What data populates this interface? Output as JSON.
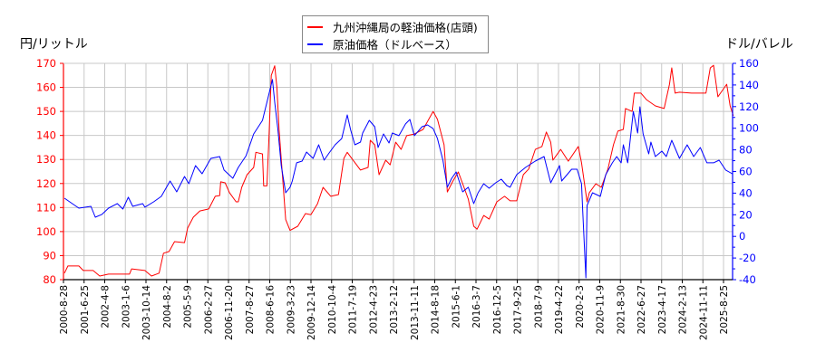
{
  "chart_data": {
    "type": "line",
    "left_axis_title": "円/リットル",
    "right_axis_title": "ドル/バレル",
    "left_ylim": [
      80,
      170
    ],
    "left_yticks": [
      80,
      90,
      100,
      110,
      120,
      130,
      140,
      150,
      160,
      170
    ],
    "right_ylim": [
      -40,
      160
    ],
    "right_yticks": [
      -40,
      -20,
      0,
      20,
      40,
      60,
      80,
      100,
      120,
      140,
      160
    ],
    "grid": true,
    "legend_position": "top-center",
    "xtick_labels": [
      "2000-8-28",
      "2001-6-25",
      "2002-4-8",
      "2003-1-6",
      "2003-10-14",
      "2004-8-2",
      "2005-5-9",
      "2006-2-27",
      "2006-11-20",
      "2007-8-27",
      "2008-6-16",
      "2009-3-23",
      "2009-12-14",
      "2010-10-4",
      "2011-7-19",
      "2012-4-23",
      "2013-2-12",
      "2013-11-11",
      "2014-8-18",
      "2015-6-1",
      "2016-3-7",
      "2016-12-5",
      "2017-9-25",
      "2018-7-9",
      "2019-4-22",
      "2020-2-3",
      "2020-11-9",
      "2021-8-30",
      "2022-6-27",
      "2023-4-17",
      "2024-2-13",
      "2024-11-11",
      "2025-8-25"
    ],
    "series": [
      {
        "name": "九州沖縄局の軽油価格(店頭)",
        "axis": "left",
        "color": "#ff0000",
        "points": [
          [
            "2000-09-15",
            82.7
          ],
          [
            "2000-11-01",
            85.7
          ],
          [
            "2001-04-01",
            85.7
          ],
          [
            "2001-06-01",
            83.8
          ],
          [
            "2001-10-15",
            83.8
          ],
          [
            "2002-01-15",
            81.5
          ],
          [
            "2002-05-15",
            82.3
          ],
          [
            "2003-03-01",
            82.3
          ],
          [
            "2003-04-01",
            84.5
          ],
          [
            "2003-10-01",
            83.8
          ],
          [
            "2004-01-01",
            81.5
          ],
          [
            "2004-04-15",
            82.7
          ],
          [
            "2004-06-15",
            91.0
          ],
          [
            "2004-09-01",
            91.7
          ],
          [
            "2004-11-15",
            95.8
          ],
          [
            "2005-04-01",
            95.4
          ],
          [
            "2005-05-15",
            101.5
          ],
          [
            "2005-08-01",
            106.0
          ],
          [
            "2005-11-01",
            108.6
          ],
          [
            "2006-03-01",
            109.4
          ],
          [
            "2006-06-01",
            114.7
          ],
          [
            "2006-08-01",
            115.0
          ],
          [
            "2006-08-15",
            120.7
          ],
          [
            "2006-10-15",
            120.3
          ],
          [
            "2006-12-15",
            116.2
          ],
          [
            "2007-03-15",
            112.4
          ],
          [
            "2007-04-15",
            112.4
          ],
          [
            "2007-06-01",
            118.4
          ],
          [
            "2007-08-15",
            123.7
          ],
          [
            "2007-11-15",
            126.7
          ],
          [
            "2007-12-15",
            133.0
          ],
          [
            "2008-03-15",
            132.3
          ],
          [
            "2008-04-01",
            119.0
          ],
          [
            "2008-05-15",
            119.0
          ],
          [
            "2008-06-15",
            140.6
          ],
          [
            "2008-07-15",
            165.0
          ],
          [
            "2008-09-01",
            169.0
          ],
          [
            "2008-10-01",
            160.0
          ],
          [
            "2008-11-01",
            142.5
          ],
          [
            "2009-02-01",
            105.0
          ],
          [
            "2009-04-01",
            100.5
          ],
          [
            "2009-07-15",
            102.2
          ],
          [
            "2009-11-01",
            107.5
          ],
          [
            "2010-01-15",
            107.0
          ],
          [
            "2010-04-15",
            111.6
          ],
          [
            "2010-07-01",
            118.4
          ],
          [
            "2010-10-15",
            114.7
          ],
          [
            "2011-02-01",
            115.4
          ],
          [
            "2011-04-15",
            130.5
          ],
          [
            "2011-06-01",
            133.0
          ],
          [
            "2011-08-01",
            130.5
          ],
          [
            "2011-12-01",
            125.6
          ],
          [
            "2012-03-15",
            126.7
          ],
          [
            "2012-04-15",
            138.0
          ],
          [
            "2012-06-15",
            136.1
          ],
          [
            "2012-08-15",
            123.7
          ],
          [
            "2012-11-15",
            129.7
          ],
          [
            "2013-01-15",
            127.8
          ],
          [
            "2013-04-01",
            137.2
          ],
          [
            "2013-06-15",
            134.2
          ],
          [
            "2013-09-01",
            139.9
          ],
          [
            "2013-12-15",
            140.6
          ],
          [
            "2014-04-15",
            142.5
          ],
          [
            "2014-09-01",
            150.0
          ],
          [
            "2014-11-01",
            146.7
          ],
          [
            "2015-02-01",
            136.1
          ],
          [
            "2015-03-15",
            116.5
          ],
          [
            "2015-06-01",
            121.0
          ],
          [
            "2015-08-15",
            124.8
          ],
          [
            "2015-10-15",
            119.9
          ],
          [
            "2016-01-01",
            113.5
          ],
          [
            "2016-03-15",
            102.2
          ],
          [
            "2016-05-01",
            101.0
          ],
          [
            "2016-08-01",
            106.7
          ],
          [
            "2016-10-15",
            105.2
          ],
          [
            "2017-02-01",
            112.4
          ],
          [
            "2017-05-15",
            114.7
          ],
          [
            "2017-08-01",
            112.8
          ],
          [
            "2017-11-01",
            112.8
          ],
          [
            "2018-02-01",
            123.7
          ],
          [
            "2018-04-15",
            126.0
          ],
          [
            "2018-07-15",
            134.2
          ],
          [
            "2018-10-15",
            135.4
          ],
          [
            "2018-12-15",
            141.4
          ],
          [
            "2019-02-15",
            137.2
          ],
          [
            "2019-03-15",
            129.7
          ],
          [
            "2019-07-01",
            134.2
          ],
          [
            "2019-10-15",
            129.3
          ],
          [
            "2020-03-01",
            135.4
          ],
          [
            "2020-04-15",
            128.6
          ],
          [
            "2020-07-01",
            112.4
          ],
          [
            "2020-08-01",
            116.2
          ],
          [
            "2020-11-01",
            119.9
          ],
          [
            "2021-01-15",
            118.4
          ],
          [
            "2021-04-15",
            126.0
          ],
          [
            "2021-07-01",
            136.1
          ],
          [
            "2021-09-01",
            141.8
          ],
          [
            "2021-11-15",
            142.5
          ],
          [
            "2021-12-15",
            151.2
          ],
          [
            "2022-03-15",
            150.0
          ],
          [
            "2022-04-15",
            157.6
          ],
          [
            "2022-07-15",
            157.6
          ],
          [
            "2022-10-01",
            154.9
          ],
          [
            "2023-02-01",
            152.3
          ],
          [
            "2023-06-01",
            151.2
          ],
          [
            "2023-08-15",
            161.3
          ],
          [
            "2023-09-15",
            168.1
          ],
          [
            "2023-11-01",
            157.6
          ],
          [
            "2024-01-01",
            158.0
          ],
          [
            "2024-06-15",
            157.6
          ],
          [
            "2025-01-01",
            157.6
          ],
          [
            "2025-03-01",
            168.1
          ],
          [
            "2025-04-15",
            169.2
          ],
          [
            "2025-06-15",
            156.1
          ],
          [
            "2025-08-15",
            158.7
          ],
          [
            "2025-10-15",
            161.3
          ],
          [
            "2025-12-01",
            152.3
          ],
          [
            "2026-01-15",
            148.2
          ]
        ]
      },
      {
        "name": "原油価格（ドルベース）",
        "axis": "right",
        "color": "#0000ff",
        "points": [
          [
            "2000-09-15",
            35.3
          ],
          [
            "2001-01-01",
            30.3
          ],
          [
            "2001-04-01",
            26.1
          ],
          [
            "2001-09-15",
            27.8
          ],
          [
            "2001-11-15",
            17.7
          ],
          [
            "2002-02-15",
            20.3
          ],
          [
            "2002-05-15",
            26.1
          ],
          [
            "2002-09-15",
            30.3
          ],
          [
            "2002-12-01",
            25.3
          ],
          [
            "2003-02-15",
            36.2
          ],
          [
            "2003-04-15",
            27.8
          ],
          [
            "2003-09-01",
            30.3
          ],
          [
            "2003-10-01",
            27.0
          ],
          [
            "2004-02-01",
            32.0
          ],
          [
            "2004-05-15",
            37.0
          ],
          [
            "2004-09-15",
            51.2
          ],
          [
            "2004-12-15",
            41.2
          ],
          [
            "2005-04-01",
            55.4
          ],
          [
            "2005-06-01",
            48.7
          ],
          [
            "2005-09-01",
            65.4
          ],
          [
            "2005-12-01",
            57.9
          ],
          [
            "2006-04-01",
            72.1
          ],
          [
            "2006-08-01",
            73.8
          ],
          [
            "2006-10-01",
            61.3
          ],
          [
            "2007-02-01",
            53.7
          ],
          [
            "2007-04-15",
            63.8
          ],
          [
            "2007-08-01",
            74.6
          ],
          [
            "2007-11-15",
            94.7
          ],
          [
            "2008-03-15",
            107.3
          ],
          [
            "2008-05-15",
            124.0
          ],
          [
            "2008-08-01",
            145.0
          ],
          [
            "2008-09-01",
            124.0
          ],
          [
            "2008-10-15",
            98.9
          ],
          [
            "2008-12-01",
            65.4
          ],
          [
            "2009-02-01",
            40.3
          ],
          [
            "2009-04-01",
            45.4
          ],
          [
            "2009-05-01",
            51.2
          ],
          [
            "2009-07-01",
            68.0
          ],
          [
            "2009-09-15",
            69.6
          ],
          [
            "2009-11-15",
            78.0
          ],
          [
            "2010-02-15",
            72.1
          ],
          [
            "2010-05-01",
            84.7
          ],
          [
            "2010-07-15",
            70.5
          ],
          [
            "2010-09-15",
            76.3
          ],
          [
            "2010-12-15",
            84.7
          ],
          [
            "2011-03-15",
            90.5
          ],
          [
            "2011-06-01",
            112.3
          ],
          [
            "2011-07-15",
            98.9
          ],
          [
            "2011-09-15",
            84.7
          ],
          [
            "2011-12-01",
            87.2
          ],
          [
            "2012-01-01",
            95.6
          ],
          [
            "2012-04-01",
            107.3
          ],
          [
            "2012-06-15",
            101.4
          ],
          [
            "2012-08-01",
            82.2
          ],
          [
            "2012-10-15",
            94.7
          ],
          [
            "2013-01-01",
            86.4
          ],
          [
            "2013-02-15",
            95.6
          ],
          [
            "2013-05-15",
            93.1
          ],
          [
            "2013-08-15",
            104.0
          ],
          [
            "2013-10-15",
            108.1
          ],
          [
            "2013-12-15",
            93.1
          ],
          [
            "2014-04-01",
            101.4
          ],
          [
            "2014-06-15",
            103.1
          ],
          [
            "2014-09-01",
            99.7
          ],
          [
            "2014-11-01",
            90.5
          ],
          [
            "2015-01-15",
            70.5
          ],
          [
            "2015-03-15",
            45.4
          ],
          [
            "2015-05-15",
            53.7
          ],
          [
            "2015-07-15",
            59.6
          ],
          [
            "2015-10-15",
            41.2
          ],
          [
            "2016-01-01",
            45.4
          ],
          [
            "2016-03-15",
            30.3
          ],
          [
            "2016-05-15",
            40.3
          ],
          [
            "2016-08-01",
            48.7
          ],
          [
            "2016-10-15",
            44.5
          ],
          [
            "2017-01-15",
            49.5
          ],
          [
            "2017-04-01",
            52.9
          ],
          [
            "2017-06-15",
            47.0
          ],
          [
            "2017-08-01",
            45.4
          ],
          [
            "2017-11-01",
            57.1
          ],
          [
            "2018-03-01",
            63.8
          ],
          [
            "2018-07-15",
            69.6
          ],
          [
            "2018-11-15",
            73.8
          ],
          [
            "2019-02-15",
            49.5
          ],
          [
            "2019-06-15",
            65.4
          ],
          [
            "2019-07-15",
            51.2
          ],
          [
            "2019-12-01",
            62.1
          ],
          [
            "2020-02-15",
            62.1
          ],
          [
            "2020-04-15",
            48.7
          ],
          [
            "2020-05-01",
            23.6
          ],
          [
            "2020-06-15",
            -38.3
          ],
          [
            "2020-07-01",
            28.6
          ],
          [
            "2020-09-15",
            40.3
          ],
          [
            "2021-01-01",
            37.0
          ],
          [
            "2021-03-15",
            57.1
          ],
          [
            "2021-06-15",
            68.0
          ],
          [
            "2021-08-15",
            73.8
          ],
          [
            "2021-10-15",
            68.0
          ],
          [
            "2021-11-15",
            84.7
          ],
          [
            "2022-01-15",
            68.0
          ],
          [
            "2022-04-01",
            115.6
          ],
          [
            "2022-06-01",
            95.6
          ],
          [
            "2022-07-01",
            119.8
          ],
          [
            "2022-08-15",
            94.7
          ],
          [
            "2022-11-01",
            76.3
          ],
          [
            "2022-12-01",
            87.2
          ],
          [
            "2023-02-01",
            73.8
          ],
          [
            "2023-05-01",
            78.8
          ],
          [
            "2023-07-01",
            73.8
          ],
          [
            "2023-09-15",
            88.9
          ],
          [
            "2024-01-01",
            72.1
          ],
          [
            "2024-04-15",
            84.7
          ],
          [
            "2024-07-15",
            73.8
          ],
          [
            "2024-10-15",
            82.2
          ],
          [
            "2025-01-15",
            68.0
          ],
          [
            "2025-04-15",
            68.0
          ],
          [
            "2025-07-01",
            70.5
          ],
          [
            "2025-10-01",
            61.3
          ],
          [
            "2026-01-01",
            57.9
          ]
        ]
      }
    ]
  }
}
